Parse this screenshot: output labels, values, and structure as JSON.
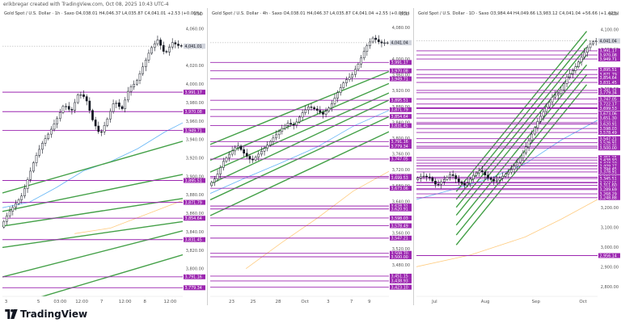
{
  "creator": "erikbregar created with TradingView.com, Oct 08, 2025 10:43 UTC-4",
  "brand": {
    "name": "TradingView"
  },
  "colors": {
    "candle": "#131722",
    "resistance": "#9c27b0",
    "label_bg": "#9c27b0",
    "label_text": "#ffffff",
    "trend": "#43a047",
    "ma_fast": "#64b5f6",
    "ma_slow": "#ffcc80",
    "price_tag": "#d1d4dc"
  },
  "chart_data": [
    {
      "type": "candlestick",
      "title": "Gold Spot / U.S. Dollar · 1h · Saxo",
      "ohlc": {
        "o": "4,038.01",
        "h": "4,046.37",
        "l": "4,035.87",
        "c": "4,041.01",
        "chg": "+2.53 (+0.06%)"
      },
      "currency": "USD",
      "ylim": [
        3770,
        4070
      ],
      "yticks": [
        4060,
        4040,
        4020,
        4000,
        3980,
        3960,
        3940,
        3920,
        3900,
        3880,
        3860,
        3840,
        3820,
        3800,
        3780
      ],
      "ytick_labels": [
        "4,060.00",
        "4,040.00",
        "4,020.00",
        "4,000.00",
        "3,980.00",
        "3,960.00",
        "3,940.00",
        "3,920.00",
        "3,900.00",
        "3,880.00",
        "3,860.00",
        "3,840.00",
        "3,820.00",
        "3,800.00",
        "3,780.00"
      ],
      "xlim": [
        0,
        100
      ],
      "xticks": [
        {
          "x": 2,
          "label": "3"
        },
        {
          "x": 20,
          "label": "5"
        },
        {
          "x": 32,
          "label": "03:00"
        },
        {
          "x": 44,
          "label": "12:00"
        },
        {
          "x": 55,
          "label": "7"
        },
        {
          "x": 68,
          "label": "12:00"
        },
        {
          "x": 79,
          "label": "8"
        },
        {
          "x": 93,
          "label": "12:00"
        }
      ],
      "last_price": 4041.01,
      "last_label": "4,041.01",
      "levels": [
        {
          "value": 3991.17,
          "label": "3,991.17"
        },
        {
          "value": 3970.08,
          "label": "3,970.08"
        },
        {
          "value": 3949.71,
          "label": "3,949.71"
        },
        {
          "value": 3895.51,
          "label": "3,895.51"
        },
        {
          "value": 3871.79,
          "label": "3,871.79"
        },
        {
          "value": 3854.64,
          "label": "3,854.64"
        },
        {
          "value": 3831.45,
          "label": "3,831.45"
        },
        {
          "value": 3791.16,
          "label": "3,791.16"
        },
        {
          "value": 3779.34,
          "label": "3,779.34"
        }
      ],
      "trendlines": [
        {
          "x1": 0,
          "y1": 3882,
          "x2": 100,
          "y2": 3938
        },
        {
          "x1": 0,
          "y1": 3862,
          "x2": 100,
          "y2": 3902
        },
        {
          "x1": 0,
          "y1": 3846,
          "x2": 100,
          "y2": 3876
        },
        {
          "x1": 0,
          "y1": 3823,
          "x2": 100,
          "y2": 3851
        },
        {
          "x1": 0,
          "y1": 3791,
          "x2": 100,
          "y2": 3841
        },
        {
          "x1": 0,
          "y1": 3757,
          "x2": 100,
          "y2": 3815
        }
      ],
      "ma_fast": [
        [
          0,
          3866
        ],
        [
          15,
          3872
        ],
        [
          30,
          3888
        ],
        [
          45,
          3906
        ],
        [
          60,
          3916
        ],
        [
          75,
          3930
        ],
        [
          90,
          3948
        ],
        [
          100,
          3958
        ]
      ],
      "ma_slow": [
        [
          40,
          3838
        ],
        [
          60,
          3844
        ],
        [
          80,
          3859
        ],
        [
          100,
          3874
        ]
      ],
      "price_path": [
        [
          0,
          3845
        ],
        [
          4,
          3860
        ],
        [
          8,
          3870
        ],
        [
          12,
          3880
        ],
        [
          15,
          3898
        ],
        [
          19,
          3920
        ],
        [
          23,
          3936
        ],
        [
          27,
          3948
        ],
        [
          31,
          3962
        ],
        [
          35,
          3978
        ],
        [
          39,
          3970
        ],
        [
          43,
          3990
        ],
        [
          47,
          3985
        ],
        [
          51,
          3960
        ],
        [
          55,
          3945
        ],
        [
          59,
          3962
        ],
        [
          63,
          3982
        ],
        [
          67,
          3972
        ],
        [
          71,
          3995
        ],
        [
          75,
          4002
        ],
        [
          79,
          4020
        ],
        [
          83,
          4038
        ],
        [
          87,
          4048
        ],
        [
          91,
          4032
        ],
        [
          95,
          4045
        ],
        [
          99,
          4041
        ]
      ]
    },
    {
      "type": "candlestick",
      "title": "Gold Spot / U.S. Dollar · 4h · Saxo",
      "ohlc": {
        "o": "4,038.01",
        "h": "4,046.37",
        "l": "4,035.87",
        "c": "4,041.04",
        "chg": "+2.55 (+0.06%)"
      },
      "currency": "USD",
      "ylim": [
        3400,
        4100
      ],
      "yticks": [
        4080,
        4040,
        4000,
        3960,
        3920,
        3880,
        3840,
        3800,
        3760,
        3720,
        3680,
        3640,
        3600,
        3560,
        3520,
        3480,
        3440
      ],
      "ytick_labels": [
        "4,080.00",
        "4,040.00",
        "4,000.00",
        "3,960.00",
        "3,920.00",
        "3,880.00",
        "3,840.00",
        "3,800.00",
        "3,760.00",
        "3,720.00",
        "3,680.00",
        "3,640.00",
        "3,600.00",
        "3,560.00",
        "3,520.00",
        "3,480.00",
        "3,440.00"
      ],
      "xlim": [
        0,
        100
      ],
      "xticks": [
        {
          "x": 12,
          "label": "23"
        },
        {
          "x": 24,
          "label": "25"
        },
        {
          "x": 38,
          "label": "28"
        },
        {
          "x": 53,
          "label": "Oct"
        },
        {
          "x": 66,
          "label": "3"
        },
        {
          "x": 79,
          "label": "7"
        },
        {
          "x": 89,
          "label": "9"
        }
      ],
      "last_price": 4041.04,
      "last_label": "4,041.04",
      "levels": [
        {
          "value": 3991.17,
          "label": "3,991.17"
        },
        {
          "value": 3970.08,
          "label": "3,970.08"
        },
        {
          "value": 3949.71,
          "label": "3,949.71"
        },
        {
          "value": 3895.51,
          "label": "3,895.51"
        },
        {
          "value": 3871.79,
          "label": "3,871.79"
        },
        {
          "value": 3854.64,
          "label": "3,854.64"
        },
        {
          "value": 3831.45,
          "label": "3,831.45"
        },
        {
          "value": 3791.16,
          "label": "3,791.16"
        },
        {
          "value": 3779.34,
          "label": "3,779.34"
        },
        {
          "value": 3747.05,
          "label": "3,747.05"
        },
        {
          "value": 3703.02,
          "label": "3,703.02"
        },
        {
          "value": 3699.53,
          "label": "3,699.53"
        },
        {
          "value": 3673.06,
          "label": "3,673.06"
        },
        {
          "value": 3628.31,
          "label": "3,628.31"
        },
        {
          "value": 3620.91,
          "label": "3,620.91"
        },
        {
          "value": 3598.03,
          "label": "3,598.03"
        },
        {
          "value": 3578.49,
          "label": "3,578.49"
        },
        {
          "value": 3547.21,
          "label": "3,547.21"
        },
        {
          "value": 3508.7,
          "label": "3,508.70"
        },
        {
          "value": 3500.0,
          "label": "3,500.00"
        },
        {
          "value": 3451.15,
          "label": "3,451.15"
        },
        {
          "value": 3438.93,
          "label": "3,438.93"
        },
        {
          "value": 3423.1,
          "label": "3,423.10"
        }
      ],
      "trendlines": [
        {
          "x1": 0,
          "y1": 3784,
          "x2": 100,
          "y2": 3968
        },
        {
          "x1": 0,
          "y1": 3744,
          "x2": 100,
          "y2": 3938
        },
        {
          "x1": 0,
          "y1": 3714,
          "x2": 100,
          "y2": 3914
        },
        {
          "x1": 0,
          "y1": 3684,
          "x2": 100,
          "y2": 3896
        },
        {
          "x1": 0,
          "y1": 3644,
          "x2": 100,
          "y2": 3854
        },
        {
          "x1": 0,
          "y1": 3604,
          "x2": 100,
          "y2": 3816
        }
      ],
      "ma_fast": [
        [
          0,
          3660
        ],
        [
          20,
          3700
        ],
        [
          40,
          3738
        ],
        [
          60,
          3778
        ],
        [
          80,
          3830
        ],
        [
          100,
          3870
        ]
      ],
      "ma_slow": [
        [
          20,
          3470
        ],
        [
          40,
          3536
        ],
        [
          60,
          3598
        ],
        [
          80,
          3666
        ],
        [
          100,
          3716
        ]
      ],
      "price_path": [
        [
          0,
          3680
        ],
        [
          4,
          3700
        ],
        [
          8,
          3740
        ],
        [
          12,
          3762
        ],
        [
          16,
          3782
        ],
        [
          20,
          3760
        ],
        [
          24,
          3742
        ],
        [
          28,
          3760
        ],
        [
          32,
          3778
        ],
        [
          36,
          3800
        ],
        [
          40,
          3820
        ],
        [
          44,
          3838
        ],
        [
          48,
          3832
        ],
        [
          52,
          3862
        ],
        [
          56,
          3880
        ],
        [
          60,
          3872
        ],
        [
          64,
          3860
        ],
        [
          68,
          3880
        ],
        [
          72,
          3914
        ],
        [
          76,
          3944
        ],
        [
          80,
          3958
        ],
        [
          84,
          3990
        ],
        [
          88,
          4030
        ],
        [
          92,
          4054
        ],
        [
          96,
          4040
        ],
        [
          99,
          4041
        ]
      ]
    },
    {
      "type": "candlestick",
      "title": "Gold Spot / U.S. Dollar · 1D · Saxo",
      "ohlc": {
        "o": "3,984.44",
        "h": "4,049.66",
        "l": "3,983.12",
        "c": "4,041.04",
        "chg": "+56.66 (+1.42%)"
      },
      "currency": "USD",
      "ylim": [
        2750,
        4150
      ],
      "yticks": [
        4100,
        4000,
        3900,
        3800,
        3700,
        3600,
        3500,
        3400,
        3300,
        3200,
        3100,
        3000,
        2900,
        2800
      ],
      "ytick_labels": [
        "4,100.00",
        "4,000.00",
        "3,900.00",
        "3,800.00",
        "3,700.00",
        "3,600.00",
        "3,500.00",
        "3,400.00",
        "3,300.00",
        "3,200.00",
        "3,100.00",
        "3,000.00",
        "2,900.00",
        "2,800.00"
      ],
      "xlim": [
        0,
        100
      ],
      "xticks": [
        {
          "x": 10,
          "label": "Jul"
        },
        {
          "x": 38,
          "label": "Aug"
        },
        {
          "x": 66,
          "label": "Sep"
        },
        {
          "x": 92,
          "label": "Oct"
        }
      ],
      "last_price": 4041.04,
      "last_label": "4,041.04",
      "levels": [
        {
          "value": 3991.17,
          "label": "3,991.17"
        },
        {
          "value": 3970.08,
          "label": "3,970.08"
        },
        {
          "value": 3949.71,
          "label": "3,949.71"
        },
        {
          "value": 3895.51,
          "label": "3,895.51"
        },
        {
          "value": 3871.79,
          "label": "3,871.79"
        },
        {
          "value": 3854.64,
          "label": "3,854.64"
        },
        {
          "value": 3831.45,
          "label": "3,831.45"
        },
        {
          "value": 3791.16,
          "label": "3,791.16"
        },
        {
          "value": 3779.34,
          "label": "3,779.34"
        },
        {
          "value": 3747.05,
          "label": "3,747.05"
        },
        {
          "value": 3722.17,
          "label": "3,722.17"
        },
        {
          "value": 3703.02,
          "label": "3,703.02"
        },
        {
          "value": 3699.53,
          "label": "3,699.53"
        },
        {
          "value": 3673.06,
          "label": "3,673.06"
        },
        {
          "value": 3651.3,
          "label": "3,651.30"
        },
        {
          "value": 3628.31,
          "label": "3,628.31"
        },
        {
          "value": 3620.91,
          "label": "3,620.91"
        },
        {
          "value": 3598.03,
          "label": "3,598.03"
        },
        {
          "value": 3578.49,
          "label": "3,578.49"
        },
        {
          "value": 3547.21,
          "label": "3,547.21"
        },
        {
          "value": 3526.91,
          "label": "3,526.91"
        },
        {
          "value": 3508.7,
          "label": "3,508.70"
        },
        {
          "value": 3500.0,
          "label": "3,500.00"
        },
        {
          "value": 3451.15,
          "label": "3,451.15"
        },
        {
          "value": 3438.93,
          "label": "3,438.93"
        },
        {
          "value": 3423.1,
          "label": "3,423.10"
        },
        {
          "value": 3410.5,
          "label": "3,410.50"
        },
        {
          "value": 3409.27,
          "label": "3,409.27"
        },
        {
          "value": 3394.45,
          "label": "3,394.45"
        },
        {
          "value": 3378.91,
          "label": "3,378.91"
        },
        {
          "value": 3352.18,
          "label": "3,352.18"
        },
        {
          "value": 3345.51,
          "label": "3,345.51"
        },
        {
          "value": 3326.38,
          "label": "3,326.38"
        },
        {
          "value": 3323.55,
          "label": "3,323.55"
        },
        {
          "value": 3311.6,
          "label": "3,311.60"
        },
        {
          "value": 3293.99,
          "label": "3,293.99"
        },
        {
          "value": 3289.69,
          "label": "3,289.69"
        },
        {
          "value": 3268.29,
          "label": "3,268.29"
        },
        {
          "value": 3248.88,
          "label": "3,248.88"
        },
        {
          "value": 2956.14,
          "label": "2,956.14"
        }
      ],
      "trendlines": [
        {
          "x1": 22,
          "y1": 3280,
          "x2": 94,
          "y2": 4090
        },
        {
          "x1": 22,
          "y1": 3240,
          "x2": 94,
          "y2": 4050
        },
        {
          "x1": 22,
          "y1": 3200,
          "x2": 94,
          "y2": 4010
        },
        {
          "x1": 22,
          "y1": 3160,
          "x2": 94,
          "y2": 3970
        },
        {
          "x1": 22,
          "y1": 3110,
          "x2": 94,
          "y2": 3920
        },
        {
          "x1": 22,
          "y1": 3060,
          "x2": 94,
          "y2": 3870
        },
        {
          "x1": 22,
          "y1": 3010,
          "x2": 94,
          "y2": 3820
        }
      ],
      "ma_fast": [
        [
          0,
          3240
        ],
        [
          20,
          3290
        ],
        [
          40,
          3345
        ],
        [
          60,
          3420
        ],
        [
          80,
          3540
        ],
        [
          100,
          3640
        ]
      ],
      "ma_slow": [
        [
          0,
          2900
        ],
        [
          30,
          2960
        ],
        [
          60,
          3050
        ],
        [
          80,
          3140
        ],
        [
          100,
          3240
        ]
      ],
      "price_path": [
        [
          0,
          3340
        ],
        [
          4,
          3360
        ],
        [
          8,
          3350
        ],
        [
          12,
          3310
        ],
        [
          16,
          3340
        ],
        [
          20,
          3370
        ],
        [
          24,
          3330
        ],
        [
          28,
          3310
        ],
        [
          32,
          3360
        ],
        [
          36,
          3390
        ],
        [
          40,
          3350
        ],
        [
          44,
          3330
        ],
        [
          48,
          3355
        ],
        [
          52,
          3380
        ],
        [
          56,
          3420
        ],
        [
          60,
          3480
        ],
        [
          64,
          3560
        ],
        [
          68,
          3640
        ],
        [
          72,
          3700
        ],
        [
          76,
          3760
        ],
        [
          80,
          3780
        ],
        [
          84,
          3860
        ],
        [
          88,
          3900
        ],
        [
          92,
          3960
        ],
        [
          96,
          4020
        ],
        [
          99,
          4041
        ]
      ]
    }
  ]
}
